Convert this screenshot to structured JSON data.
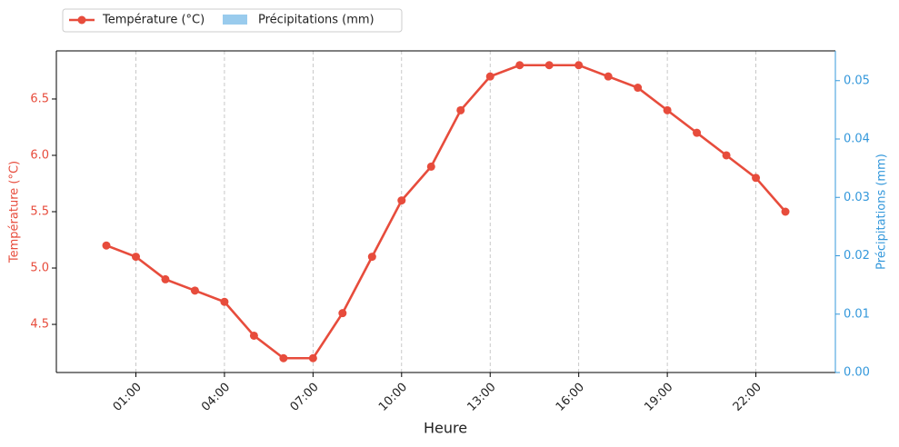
{
  "chart_data": {
    "type": "line",
    "x_label": "Heure",
    "categories": [
      null,
      "01:00",
      null,
      null,
      "04:00",
      null,
      null,
      "07:00",
      null,
      null,
      "10:00",
      null,
      null,
      "13:00",
      null,
      null,
      "16:00",
      null,
      null,
      "19:00",
      null,
      null,
      "22:00",
      null
    ],
    "series": [
      {
        "name": "Température (°C)",
        "color": "#e74c3c",
        "values": [
          5.2,
          5.1,
          4.9,
          4.8,
          4.7,
          4.4,
          4.2,
          4.2,
          4.6,
          5.1,
          5.6,
          5.9,
          6.4,
          6.7,
          6.8,
          6.8,
          6.8,
          6.7,
          6.6,
          6.4,
          6.2,
          6.0,
          5.8,
          5.5
        ]
      },
      {
        "name": "Précipitations (mm)",
        "color": "#3498db",
        "axis": "y2",
        "type": "bar",
        "values": [
          0,
          0,
          0,
          0,
          0,
          0,
          0,
          0,
          0,
          0,
          0,
          0,
          0,
          0,
          0,
          0,
          0,
          0,
          0,
          0,
          0,
          0,
          0,
          0
        ]
      }
    ],
    "y_label": "Température (°C)",
    "y2_label": "Précipitations (mm)",
    "ylim": [
      4.073,
      6.927
    ],
    "yticks": [
      4.5,
      {
        "value": 5,
        "label": "5.0"
      },
      5.5,
      {
        "value": 6,
        "label": "6.0"
      },
      6.5
    ],
    "y2lim": [
      0,
      0.0551
    ],
    "y2ticks": [
      {
        "value": 0,
        "label": "0.00"
      },
      0.01,
      0.02,
      0.03,
      0.04,
      0.05
    ],
    "grid": "x",
    "legend": "top-left"
  }
}
